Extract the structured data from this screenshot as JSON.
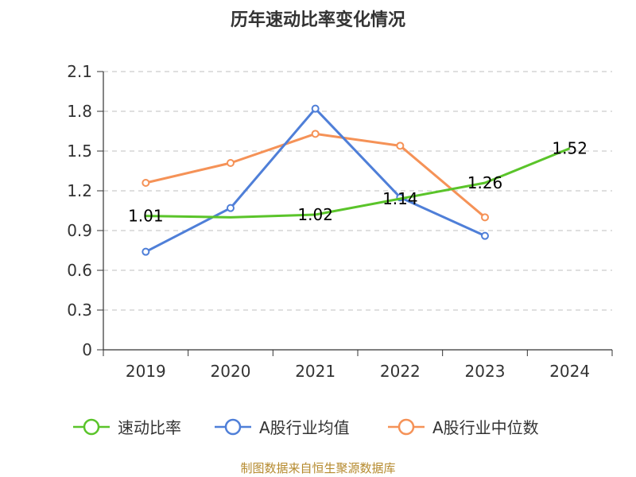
{
  "chart_data": {
    "type": "line",
    "title": "历年速动比率变化情况",
    "categories": [
      "2019",
      "2020",
      "2021",
      "2022",
      "2023",
      "2024"
    ],
    "ylim": [
      0,
      2.1
    ],
    "yticks": [
      "0",
      "0.3",
      "0.6",
      "0.9",
      "1.2",
      "1.5",
      "1.8",
      "2.1"
    ],
    "grid": true,
    "legend_position": "bottom",
    "series": [
      {
        "name": "速动比率",
        "color": "#5ac42a",
        "values": [
          1.01,
          1.0,
          1.02,
          1.14,
          1.26,
          1.52
        ],
        "labels": [
          "1.01",
          "",
          "1.02",
          "1.14",
          "1.26",
          "1.52"
        ]
      },
      {
        "name": "A股行业均值",
        "color": "#4f7fd8",
        "values": [
          0.74,
          1.07,
          1.82,
          1.15,
          0.86,
          null
        ]
      },
      {
        "name": "A股行业中位数",
        "color": "#f59257",
        "values": [
          1.26,
          1.41,
          1.63,
          1.54,
          1.0,
          null
        ]
      }
    ],
    "source": "制图数据来自恒生聚源数据库"
  }
}
